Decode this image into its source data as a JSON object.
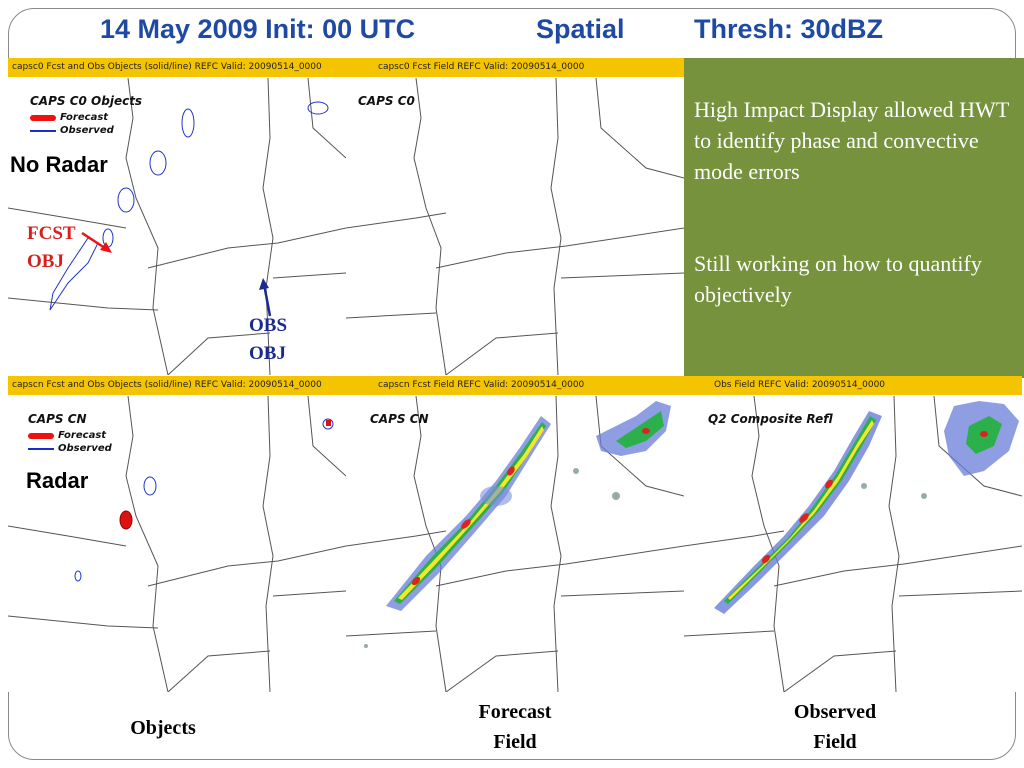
{
  "slide": {
    "title": {
      "date_init": "14 May 2009 Init: 00 UTC",
      "method": "Spatial",
      "threshold": "Thresh: 30dBZ"
    },
    "callout": {
      "point1": "High Impact Display allowed HWT to identify phase and convective mode errors",
      "point2": "Still working on how to quantify objectively"
    },
    "columns": {
      "objects": "Objects",
      "forecast_l1": "Forecast",
      "forecast_l2": "Field",
      "observed_l1": "Observed",
      "observed_l2": "Field"
    }
  },
  "row_top": {
    "bar_left": "capsc0  Fcst and Obs Objects (solid/line) REFC  Valid: 20090514_0000",
    "bar_mid": "capsc0  Fcst Field  REFC  Valid: 20090514_0000",
    "panel_objects_label": "CAPS C0  Objects",
    "panel_field_label": "CAPS C0",
    "tag": "No Radar",
    "legend_forecast": "Forecast",
    "legend_observed": "Observed",
    "fcst_obj_l1": "FCST",
    "fcst_obj_l2": "OBJ",
    "obs_obj_l1": "OBS",
    "obs_obj_l2": "OBJ"
  },
  "row_bottom": {
    "bar_left": "capscn  Fcst and Obs Objects (solid/line) REFC  Valid: 20090514_0000",
    "bar_mid": "capscn  Fcst Field  REFC  Valid: 20090514_0000",
    "bar_right": "Obs Field  REFC  Valid: 20090514_0000",
    "panel_objects_label": "CAPS CN",
    "panel_field_label": "CAPS CN",
    "panel_obs_label": "Q2 Composite Refl",
    "tag": "Radar",
    "legend_forecast": "Forecast",
    "legend_observed": "Observed"
  },
  "colors": {
    "title": "#1f4aa3",
    "callout_bg": "#76923c",
    "bar_bg": "#f5c400",
    "forecast": "#e11111",
    "observed": "#1a2bd0",
    "annotation_fcst": "#d81e1e",
    "annotation_obs": "#1b2a8f"
  }
}
